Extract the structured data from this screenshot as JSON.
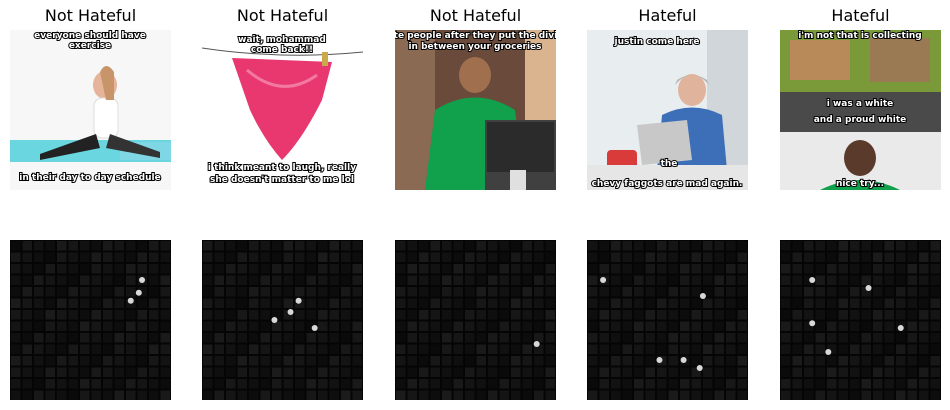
{
  "panels": [
    {
      "label": "Not Hateful",
      "caption_top": [
        "everyone should have",
        "exercise"
      ],
      "caption_bottom": [
        "in their day to day schedule"
      ]
    },
    {
      "label": "Not Hateful",
      "caption_top": [
        "wait, mohammad",
        "come back!!"
      ],
      "caption_bottom": [
        "i think meant to laugh, really",
        "she doesn't matter to me lol"
      ]
    },
    {
      "label": "Not Hateful",
      "caption_top": [
        "white people after they put the divider",
        "in between your groceries"
      ],
      "caption_bottom": []
    },
    {
      "label": "Hateful",
      "caption_top": [
        "justin come here"
      ],
      "caption_bottom": [
        "the",
        "chevy faggots are mad again."
      ]
    },
    {
      "label": "Hateful",
      "caption_top": [
        "i'm not that is collecting",
        "i was a white",
        "and a proud white"
      ],
      "caption_bottom": [
        "nice try..."
      ]
    }
  ],
  "saliency_maps": [
    {
      "hotspots": [
        [
          0.82,
          0.25
        ],
        [
          0.8,
          0.33
        ],
        [
          0.75,
          0.38
        ]
      ]
    },
    {
      "hotspots": [
        [
          0.6,
          0.38
        ],
        [
          0.55,
          0.45
        ],
        [
          0.45,
          0.5
        ],
        [
          0.7,
          0.55
        ]
      ]
    },
    {
      "hotspots": [
        [
          0.88,
          0.65
        ]
      ]
    },
    {
      "hotspots": [
        [
          0.1,
          0.25
        ],
        [
          0.72,
          0.35
        ],
        [
          0.45,
          0.75
        ],
        [
          0.6,
          0.75
        ],
        [
          0.7,
          0.8
        ]
      ]
    },
    {
      "hotspots": [
        [
          0.2,
          0.25
        ],
        [
          0.55,
          0.3
        ],
        [
          0.75,
          0.55
        ],
        [
          0.2,
          0.52
        ],
        [
          0.3,
          0.7
        ]
      ]
    }
  ]
}
